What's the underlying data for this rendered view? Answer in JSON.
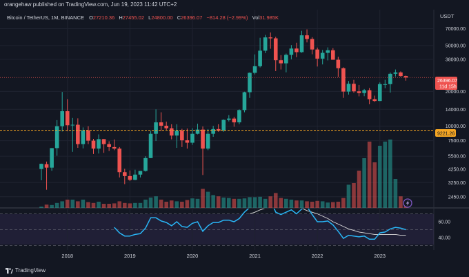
{
  "topbar": {
    "text": "orangehaw published on TradingView.com, Jun 19, 2023 11:42 UTC+2"
  },
  "legend": {
    "symbol": "Bitcoin / TetherUS, 1M, BINANCE",
    "o_label": "O",
    "o": "27210.36",
    "h_label": "H",
    "h": "27455.02",
    "l_label": "L",
    "l": "24800.00",
    "c_label": "C",
    "c": "26396.07",
    "change": "−814.28 (−2.99%)",
    "vol_label": "Vol",
    "vol": "31.985K"
  },
  "price_axis": {
    "currency": "USDT",
    "ticks": [
      "70000.00",
      "50000.00",
      "38000.00",
      "20000.00",
      "14000.00",
      "10000.00",
      "7500.00",
      "5500.00",
      "4250.00",
      "3250.00",
      "2450.00"
    ],
    "last_price_tag": "26396.07",
    "countdown_tag": "11d 15h",
    "level_tag": "9221.26"
  },
  "rsi_axis": {
    "ticks": [
      "60.00",
      "40.00"
    ]
  },
  "time_axis": {
    "labels": [
      "2018",
      "2019",
      "2020",
      "2021",
      "2022",
      "2023"
    ]
  },
  "footer": {
    "brand": "TradingView"
  },
  "colors": {
    "up": "#26a69a",
    "down": "#ef5350",
    "rsi": "#29b6f6",
    "ma": "#e0e0e0",
    "level": "#f5a623",
    "bg": "#131722"
  },
  "chart_data": [
    {
      "type": "candlestick",
      "title": "Bitcoin / TetherUS, 1M, BINANCE",
      "scale": "log",
      "ylim": [
        2100,
        82000
      ],
      "x_unit": "month",
      "x_start": "2017-08",
      "horizontal_levels": [
        9221.26,
        26396.07
      ],
      "candles": [
        [
          4261,
          4745,
          3400,
          4724
        ],
        [
          4689,
          4939,
          2817,
          4378
        ],
        [
          4378,
          6470,
          4110,
          6463
        ],
        [
          6463,
          11300,
          5550,
          10000
        ],
        [
          10000,
          19798,
          9000,
          13500
        ],
        [
          13500,
          17176,
          9035,
          10200
        ],
        [
          10200,
          11786,
          6000,
          10300
        ],
        [
          10300,
          11700,
          6500,
          7000
        ],
        [
          7000,
          9769,
          6425,
          9200
        ],
        [
          9200,
          10000,
          7000,
          7500
        ],
        [
          7500,
          7779,
          5755,
          6400
        ],
        [
          6400,
          8500,
          5800,
          7730
        ],
        [
          7730,
          7760,
          5880,
          7000
        ],
        [
          7000,
          7410,
          6100,
          6600
        ],
        [
          6600,
          7680,
          6200,
          6400
        ],
        [
          6400,
          6600,
          3600,
          4000
        ],
        [
          4000,
          4280,
          3150,
          3700
        ],
        [
          3700,
          4140,
          3350,
          3430
        ],
        [
          3430,
          4200,
          3400,
          3810
        ],
        [
          3810,
          4100,
          3600,
          4100
        ],
        [
          4100,
          5500,
          4050,
          5300
        ],
        [
          5300,
          9100,
          5300,
          8600
        ],
        [
          8600,
          14000,
          7450,
          10800
        ],
        [
          10800,
          13200,
          9100,
          10100
        ],
        [
          10100,
          10950,
          9300,
          9600
        ],
        [
          9600,
          10400,
          7700,
          8300
        ],
        [
          8300,
          10400,
          6500,
          9150
        ],
        [
          9150,
          9500,
          6600,
          7550
        ],
        [
          7550,
          9550,
          6400,
          7200
        ],
        [
          7200,
          9600,
          6900,
          8600
        ],
        [
          8600,
          10500,
          8500,
          9350
        ],
        [
          9350,
          9950,
          3780,
          6400
        ],
        [
          6400,
          9450,
          6200,
          8600
        ],
        [
          8600,
          10070,
          8100,
          9450
        ],
        [
          9450,
          10400,
          8950,
          9140
        ],
        [
          9140,
          11450,
          8950,
          11350
        ],
        [
          11350,
          12480,
          11000,
          11650
        ],
        [
          11650,
          12050,
          9900,
          10800
        ],
        [
          10800,
          14000,
          10400,
          13800
        ],
        [
          13800,
          19900,
          13200,
          19700
        ],
        [
          19700,
          29300,
          17600,
          29000
        ],
        [
          29000,
          41900,
          28100,
          33100
        ],
        [
          33100,
          58350,
          32300,
          45100
        ],
        [
          45100,
          61800,
          43000,
          58800
        ],
        [
          58800,
          64850,
          46900,
          57700
        ],
        [
          57700,
          59500,
          30000,
          37300
        ],
        [
          37300,
          41300,
          31000,
          35050
        ],
        [
          35050,
          42600,
          29300,
          41500
        ],
        [
          41500,
          50500,
          38000,
          47100
        ],
        [
          47100,
          52900,
          39600,
          43800
        ],
        [
          43800,
          67000,
          43300,
          61300
        ],
        [
          61300,
          69000,
          53250,
          57000
        ],
        [
          57000,
          59050,
          42000,
          46200
        ],
        [
          46200,
          47990,
          32900,
          38500
        ],
        [
          38500,
          45800,
          34300,
          43200
        ],
        [
          43200,
          48200,
          37150,
          45500
        ],
        [
          45500,
          47450,
          37600,
          37650
        ],
        [
          37650,
          40000,
          26700,
          31800
        ],
        [
          31800,
          32400,
          17600,
          19950
        ],
        [
          19950,
          24650,
          18800,
          23300
        ],
        [
          23300,
          25200,
          19550,
          20050
        ],
        [
          20050,
          22800,
          18150,
          19400
        ],
        [
          19400,
          21000,
          18200,
          20500
        ],
        [
          20500,
          21450,
          15500,
          17150
        ],
        [
          17150,
          18400,
          16250,
          16550
        ],
        [
          16550,
          23950,
          16500,
          23150
        ],
        [
          23150,
          25250,
          21350,
          23150
        ],
        [
          23150,
          29200,
          19550,
          28450
        ],
        [
          28450,
          31000,
          26950,
          29250
        ],
        [
          29250,
          29850,
          26850,
          27200
        ],
        [
          27210,
          27455,
          24800,
          26396
        ]
      ],
      "volume": [
        0.3,
        0.8,
        0.7,
        1.2,
        1.6,
        2.0,
        2.0,
        1.6,
        2.0,
        1.4,
        1.2,
        1.5,
        1.0,
        1.0,
        1.1,
        1.6,
        1.2,
        1.1,
        1.2,
        1.2,
        2.0,
        2.5,
        2.8,
        2.0,
        1.5,
        1.8,
        1.6,
        1.5,
        1.9,
        2.3,
        2.2,
        4.6,
        3.9,
        3.1,
        2.8,
        2.5,
        2.4,
        2.2,
        2.2,
        2.3,
        2.6,
        2.6,
        2.7,
        2.2,
        2.8,
        3.6,
        2.4,
        2.2,
        2.0,
        1.8,
        1.8,
        1.6,
        1.5,
        1.7,
        1.6,
        1.3,
        1.4,
        1.5,
        2.4,
        5.6,
        6.0,
        9.0,
        12.0,
        16.0,
        11.0,
        15.0,
        16.0,
        16.5,
        7.0,
        2.8,
        1.1
      ],
      "rsi": [
        null,
        null,
        null,
        null,
        null,
        null,
        null,
        null,
        null,
        null,
        null,
        null,
        null,
        null,
        53,
        46,
        42,
        42,
        44,
        45,
        52,
        65,
        65,
        61,
        59,
        55,
        60,
        54,
        53,
        58,
        60,
        48,
        55,
        59,
        59,
        62,
        62,
        60,
        64,
        72,
        78,
        80,
        84,
        87,
        87,
        72,
        69,
        72,
        75,
        70,
        76,
        79,
        69,
        60,
        60,
        61,
        56,
        48,
        39,
        43,
        42,
        41,
        42,
        38,
        38,
        46,
        47,
        51,
        53,
        52,
        50
      ],
      "rsi_ma": [
        null,
        null,
        null,
        null,
        null,
        null,
        null,
        null,
        null,
        null,
        null,
        null,
        null,
        null,
        null,
        null,
        null,
        null,
        null,
        null,
        null,
        null,
        null,
        null,
        null,
        null,
        null,
        null,
        null,
        null,
        null,
        null,
        null,
        null,
        null,
        null,
        null,
        null,
        null,
        null,
        70,
        72,
        75,
        77,
        79,
        80,
        80,
        80,
        80,
        79,
        77,
        74,
        72,
        70,
        67,
        64,
        60,
        57,
        54,
        51,
        49,
        47,
        46,
        45,
        44,
        44,
        44,
        44,
        44,
        43,
        43
      ],
      "rsi_levels": [
        70,
        50,
        30
      ]
    }
  ]
}
